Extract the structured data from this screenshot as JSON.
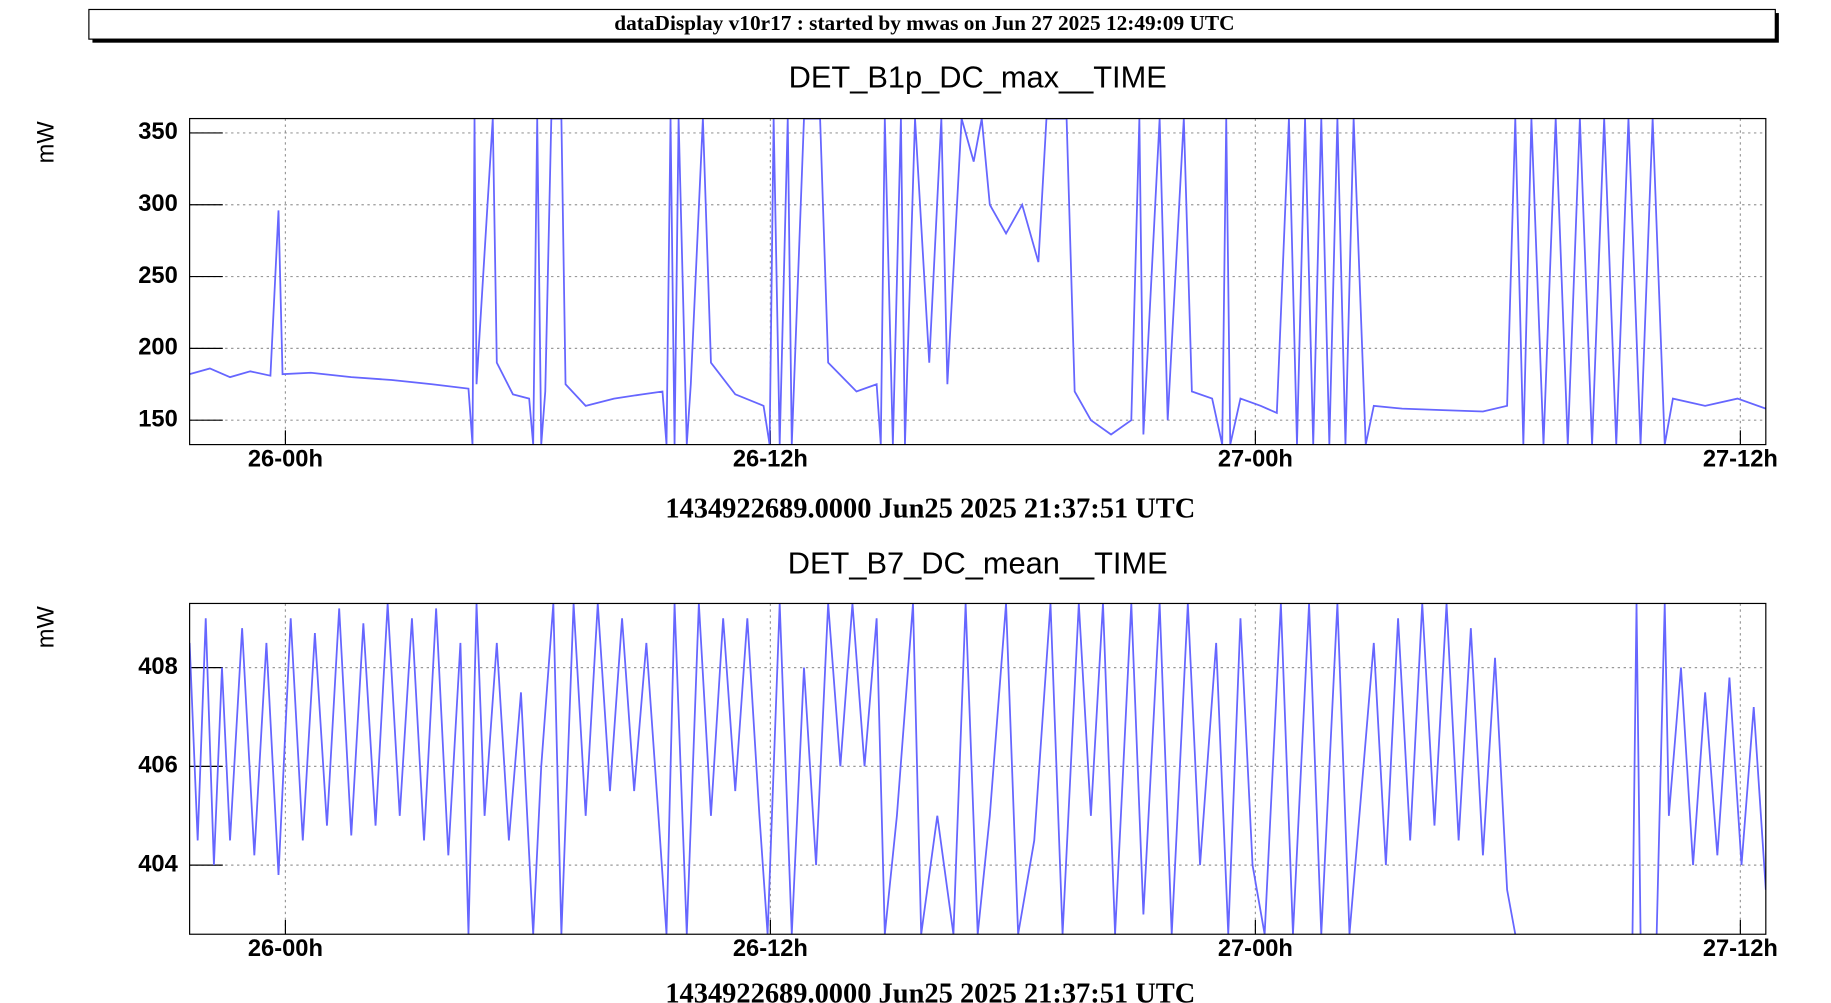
{
  "header": {
    "title": "dataDisplay v10r17 : started by mwas on Jun 27 2025 12:49:09 UTC"
  },
  "chart_data": [
    {
      "type": "line",
      "title": "DET_B1p_DC_max__TIME",
      "y_label": "mW",
      "x_label": "1434922689.0000 Jun25 2025 21:37:51 UTC",
      "color": "#6666ff",
      "grid": true,
      "xlim": [
        0,
        39
      ],
      "ylim": [
        133,
        360
      ],
      "xticks": [
        {
          "value": 2.37,
          "label": "26-00h"
        },
        {
          "value": 14.37,
          "label": "26-12h"
        },
        {
          "value": 26.37,
          "label": "27-00h"
        },
        {
          "value": 38.37,
          "label": "27-12h"
        }
      ],
      "yticks": [
        150,
        200,
        250,
        300,
        350
      ],
      "x": [
        0,
        0.5,
        1.0,
        1.5,
        2.0,
        2.2,
        2.3,
        3,
        4,
        5,
        6,
        6.9,
        7.0,
        7.05,
        7.1,
        7.5,
        7.6,
        8.0,
        8.4,
        8.5,
        8.6,
        8.7,
        8.8,
        8.95,
        9.2,
        9.3,
        9.8,
        10.5,
        11.2,
        11.7,
        11.8,
        11.9,
        12.0,
        12.1,
        12.3,
        12.4,
        12.7,
        12.9,
        13.5,
        14.2,
        14.35,
        14.45,
        14.6,
        14.8,
        14.9,
        15.2,
        15.6,
        15.8,
        16.5,
        17.0,
        17.1,
        17.2,
        17.4,
        17.6,
        17.7,
        17.95,
        18.3,
        18.6,
        18.75,
        19.1,
        19.4,
        19.6,
        19.8,
        20.2,
        20.6,
        21.0,
        21.2,
        21.7,
        21.9,
        22.3,
        22.8,
        23.3,
        23.5,
        23.6,
        24.0,
        24.2,
        24.6,
        24.8,
        25.3,
        25.55,
        25.65,
        25.75,
        26.0,
        26.5,
        26.9,
        27.2,
        27.4,
        27.6,
        27.8,
        28.0,
        28.2,
        28.4,
        28.6,
        28.8,
        29.1,
        29.3,
        30,
        31,
        32,
        32.6,
        32.8,
        33.0,
        33.2,
        33.5,
        33.8,
        34.1,
        34.4,
        34.7,
        35.0,
        35.3,
        35.6,
        35.9,
        36.2,
        36.5,
        36.7,
        37.5,
        38.3,
        39.0
      ],
      "values": [
        182,
        186,
        180,
        184,
        181,
        296,
        182,
        183,
        180,
        178,
        175,
        172,
        133,
        360,
        175,
        360,
        190,
        168,
        165,
        133,
        360,
        133,
        170,
        360,
        360,
        175,
        160,
        165,
        168,
        170,
        133,
        360,
        133,
        360,
        133,
        175,
        360,
        190,
        168,
        160,
        133,
        360,
        133,
        360,
        133,
        360,
        360,
        190,
        170,
        175,
        133,
        360,
        133,
        360,
        133,
        360,
        190,
        360,
        175,
        360,
        330,
        360,
        300,
        280,
        300,
        260,
        360,
        360,
        170,
        150,
        140,
        150,
        360,
        140,
        360,
        150,
        360,
        170,
        165,
        133,
        360,
        133,
        165,
        160,
        155,
        360,
        133,
        360,
        133,
        360,
        133,
        360,
        133,
        360,
        133,
        160,
        158,
        157,
        156,
        160,
        360,
        133,
        360,
        133,
        360,
        133,
        360,
        133,
        360,
        133,
        360,
        133,
        360,
        133,
        165,
        160,
        165,
        158
      ]
    },
    {
      "type": "line",
      "title": "DET_B7_DC_mean__TIME",
      "y_label": "mW",
      "x_label": "1434922689.0000 Jun25 2025 21:37:51 UTC",
      "color": "#6666ff",
      "grid": true,
      "xlim": [
        0,
        39
      ],
      "ylim": [
        402.6,
        409.3
      ],
      "xticks": [
        {
          "value": 2.37,
          "label": "26-00h"
        },
        {
          "value": 14.37,
          "label": "26-12h"
        },
        {
          "value": 26.37,
          "label": "27-00h"
        },
        {
          "value": 38.37,
          "label": "27-12h"
        }
      ],
      "yticks": [
        404,
        406,
        408
      ],
      "x": [
        0,
        0.2,
        0.4,
        0.6,
        0.8,
        1.0,
        1.3,
        1.6,
        1.9,
        2.2,
        2.5,
        2.8,
        3.1,
        3.4,
        3.7,
        4.0,
        4.3,
        4.6,
        4.9,
        5.2,
        5.5,
        5.8,
        6.1,
        6.4,
        6.7,
        6.9,
        7.1,
        7.3,
        7.6,
        7.9,
        8.2,
        8.5,
        8.7,
        9.0,
        9.2,
        9.5,
        9.8,
        10.1,
        10.4,
        10.7,
        11.0,
        11.3,
        11.6,
        11.8,
        12.0,
        12.3,
        12.6,
        12.9,
        13.2,
        13.5,
        13.8,
        14.1,
        14.3,
        14.6,
        14.9,
        15.2,
        15.5,
        15.8,
        16.1,
        16.4,
        16.7,
        17.0,
        17.2,
        17.5,
        17.9,
        18.1,
        18.5,
        18.9,
        19.2,
        19.5,
        19.8,
        20.2,
        20.5,
        20.9,
        21.3,
        21.6,
        22.0,
        22.3,
        22.6,
        22.9,
        23.3,
        23.6,
        24.0,
        24.3,
        24.7,
        25.0,
        25.4,
        25.7,
        26.0,
        26.3,
        26.6,
        27.0,
        27.3,
        27.7,
        28.0,
        28.4,
        28.7,
        29.3,
        29.6,
        29.9,
        30.2,
        30.5,
        30.8,
        31.1,
        31.4,
        31.7,
        32.0,
        32.3,
        32.6,
        32.8,
        32.9,
        35.7,
        35.8,
        35.9,
        36.0,
        36.3,
        36.5,
        36.6,
        36.9,
        37.2,
        37.5,
        37.8,
        38.1,
        38.4,
        38.7,
        39.0
      ],
      "values": [
        408.5,
        404.5,
        409,
        404,
        408,
        404.5,
        408.8,
        404.2,
        408.5,
        403.8,
        409,
        404.5,
        408.7,
        404.8,
        409.2,
        404.6,
        408.9,
        404.8,
        409.3,
        405,
        409,
        404.5,
        409.2,
        404.2,
        408.5,
        402.6,
        409.3,
        405,
        408.5,
        404.5,
        407.5,
        402.6,
        406,
        409.3,
        402.6,
        409.3,
        405,
        409.3,
        405.5,
        409,
        405.5,
        408.5,
        405,
        402.6,
        409.3,
        402.6,
        409.3,
        405,
        409,
        405.5,
        409,
        405,
        402.6,
        409.3,
        402.6,
        408,
        404,
        409.3,
        406,
        409.3,
        406,
        409,
        402.6,
        405,
        409.3,
        402.6,
        405,
        402.6,
        409.3,
        402.6,
        405,
        409.3,
        402.6,
        404.5,
        409.3,
        402.6,
        409.3,
        405,
        409.3,
        402.6,
        409.3,
        403,
        409.3,
        402.6,
        409.3,
        404,
        408.5,
        402.6,
        409,
        404,
        402.6,
        409.3,
        402.6,
        409.3,
        402.6,
        409.3,
        402.6,
        408.5,
        404,
        409,
        404.5,
        409.3,
        404.8,
        409.3,
        404.5,
        408.8,
        404.2,
        408.2,
        403.5,
        402.6,
        null,
        402.6,
        409.3,
        402.6,
        null,
        402.6,
        409.3,
        405,
        408,
        404,
        407.5,
        404.2,
        407.8,
        404,
        407.2,
        403.5
      ]
    }
  ]
}
